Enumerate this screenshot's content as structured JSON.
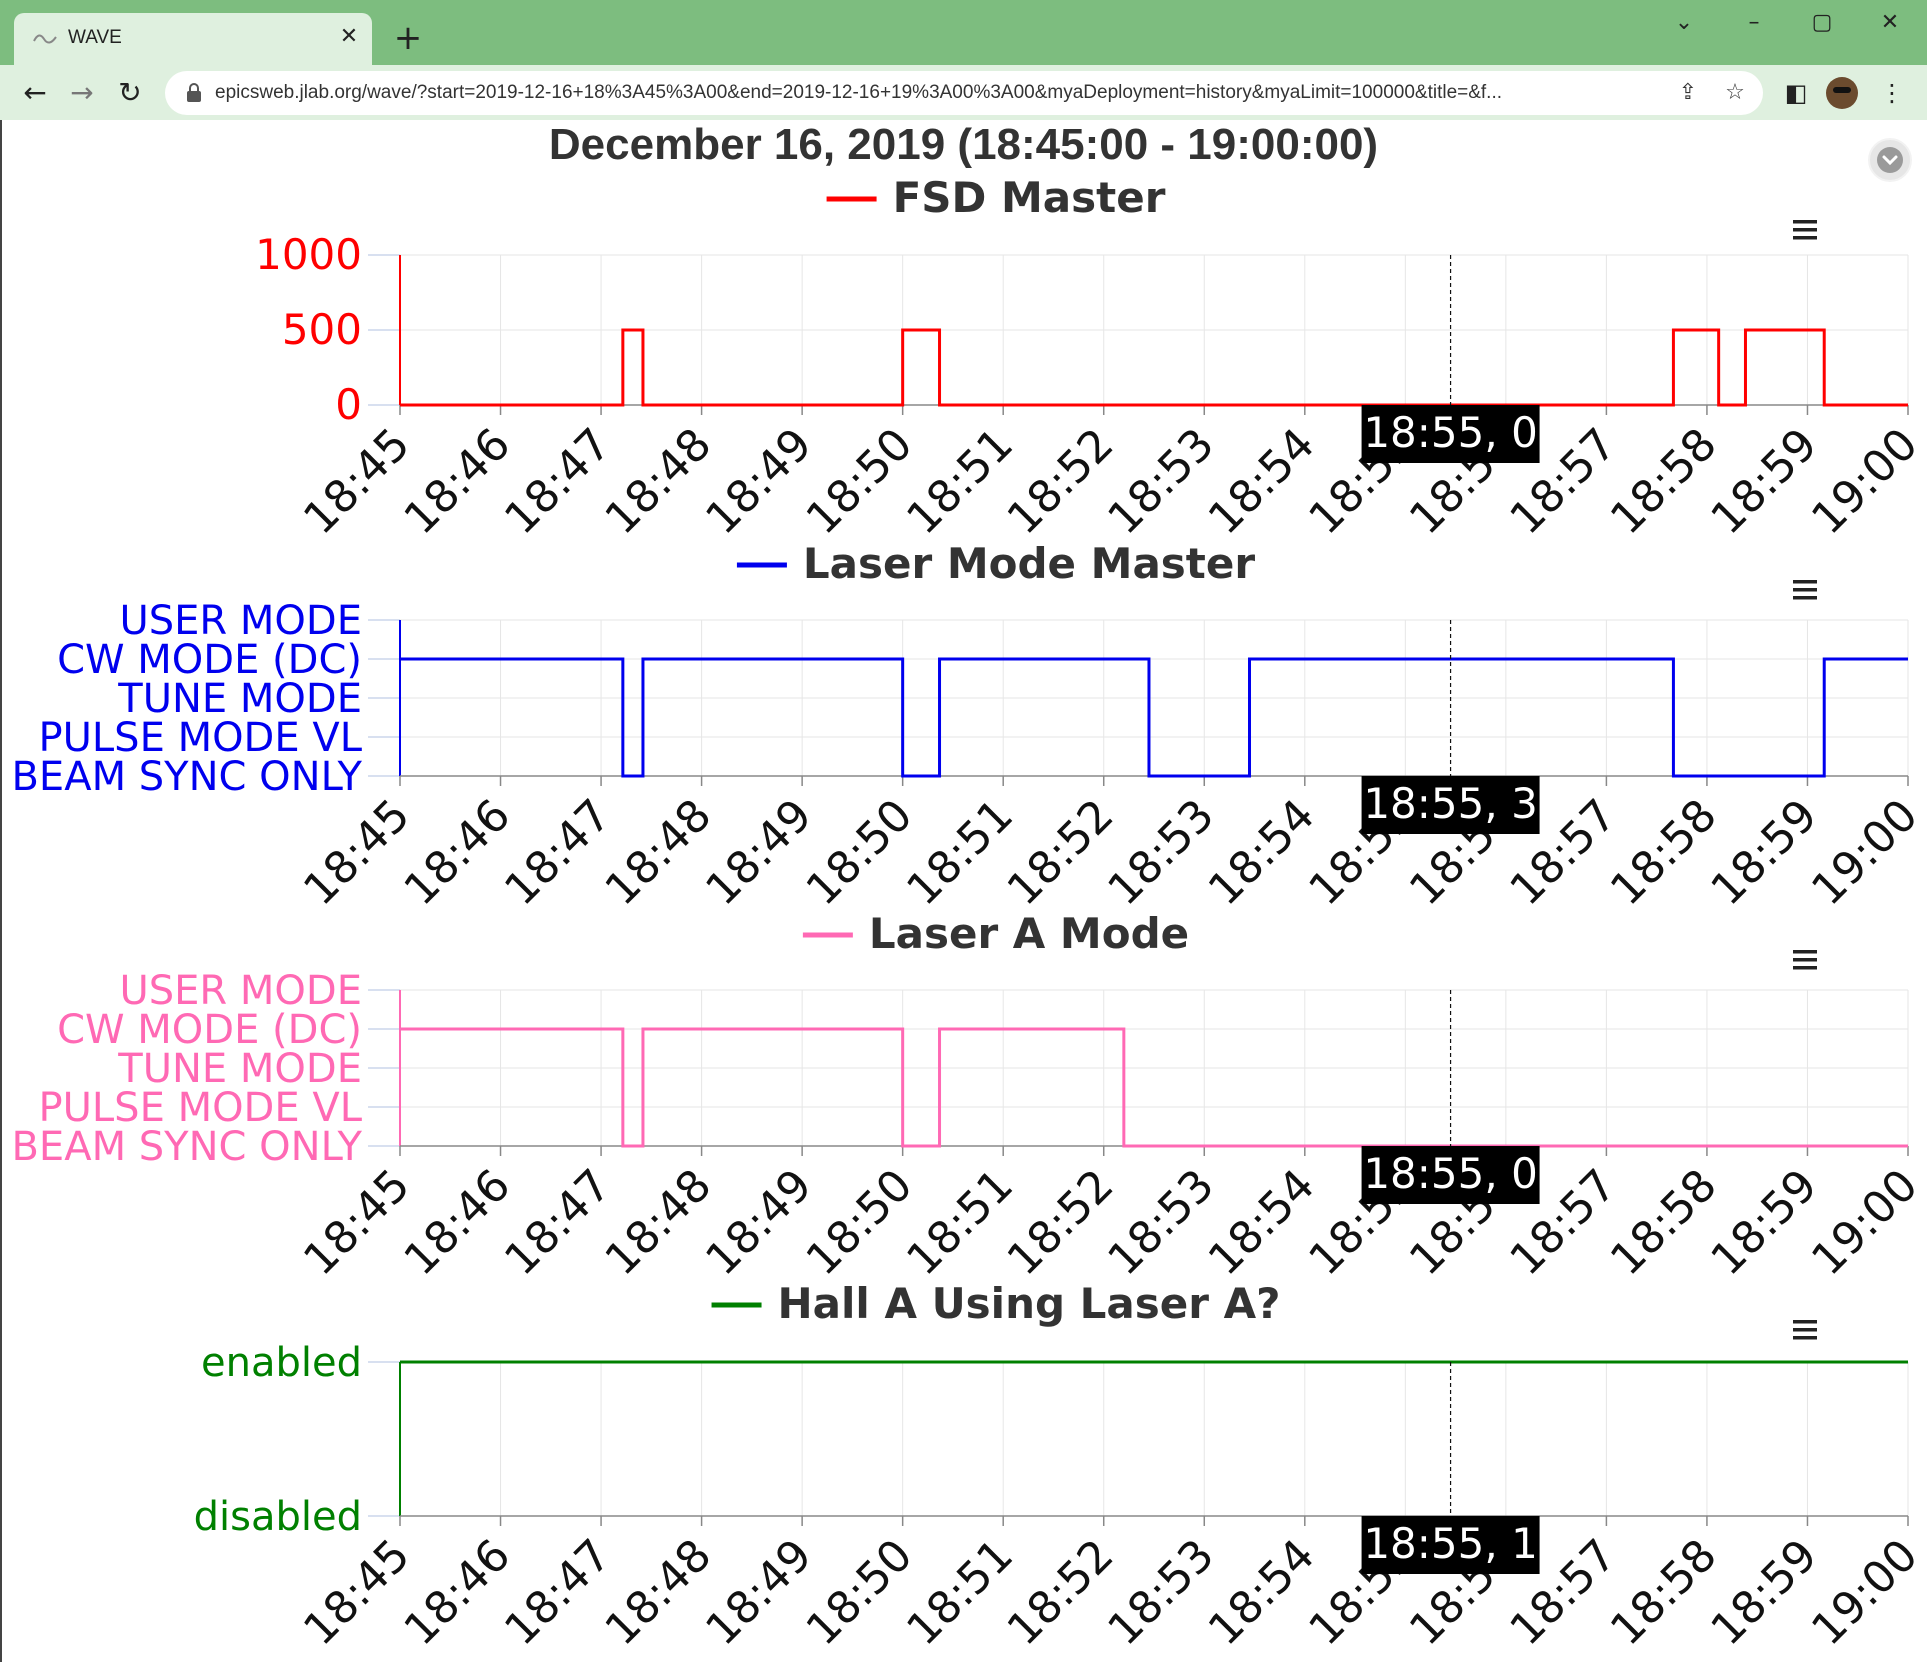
{
  "browser": {
    "tab_title": "WAVE",
    "url": "epicsweb.jlab.org/wave/?start=2019-12-16+18%3A45%3A00&end=2019-12-16+19%3A00%3A00&myaDeployment=history&myaLimit=100000&title=&f...",
    "icons": [
      "wave-favicon",
      "close-icon",
      "plus-icon",
      "chevron-down-icon",
      "minimize-icon",
      "maximize-icon",
      "window-close-icon",
      "back-arrow-icon",
      "forward-arrow-icon",
      "reload-icon",
      "lock-icon",
      "share-icon",
      "star-icon",
      "sidebar-icon",
      "profile-avatar",
      "kebab-menu-icon"
    ]
  },
  "page": {
    "title": "December 16, 2019 (18:45:00 - 19:00:00)",
    "download_icon": "chevron-down-circle-icon",
    "menu_icon": "hamburger-icon"
  },
  "chart_data": [
    {
      "type": "line",
      "step": true,
      "title": "FSD Master",
      "x_ticks": [
        "18:45",
        "18:46",
        "18:47",
        "18:48",
        "18:49",
        "18:50",
        "18:51",
        "18:52",
        "18:53",
        "18:54",
        "18:55",
        "18:56",
        "18:57",
        "18:58",
        "18:59",
        "19:00"
      ],
      "xlim": [
        "18:45",
        "19:00"
      ],
      "ylim": [
        0,
        1000
      ],
      "y_ticks": [
        "0",
        "500",
        "1000"
      ],
      "grid": true,
      "color": "#ff0000",
      "series": [
        {
          "name": "FSD Master",
          "x": [
            "18:45:00",
            "18:47:13",
            "18:47:25",
            "18:50:00",
            "18:50:22",
            "18:57:40",
            "18:58:07",
            "18:58:23",
            "18:59:10",
            "19:00:00"
          ],
          "y": [
            0,
            500,
            0,
            500,
            0,
            500,
            0,
            500,
            0,
            0
          ]
        }
      ],
      "crosshair": {
        "x": "18:55:27",
        "label": "18:55, 0"
      }
    },
    {
      "type": "line",
      "step": true,
      "title": "Laser Mode Master",
      "x_ticks": [
        "18:45",
        "18:46",
        "18:47",
        "18:48",
        "18:49",
        "18:50",
        "18:51",
        "18:52",
        "18:53",
        "18:54",
        "18:55",
        "18:56",
        "18:57",
        "18:58",
        "18:59",
        "19:00"
      ],
      "xlim": [
        "18:45",
        "19:00"
      ],
      "ylim": [
        0,
        4
      ],
      "y_ticks": [
        "BEAM SYNC ONLY",
        "PULSE MODE VL",
        "TUNE MODE",
        "CW MODE (DC)",
        "USER MODE"
      ],
      "grid": true,
      "color": "#0000ee",
      "series": [
        {
          "name": "Laser Mode Master",
          "x": [
            "18:45:00",
            "18:47:13",
            "18:47:25",
            "18:50:00",
            "18:50:22",
            "18:52:27",
            "18:53:27",
            "18:57:40",
            "18:59:10",
            "19:00:00"
          ],
          "y": [
            3,
            0,
            3,
            0,
            3,
            0,
            3,
            0,
            3,
            3
          ]
        }
      ],
      "crosshair": {
        "x": "18:55:27",
        "label": "18:55, 3"
      }
    },
    {
      "type": "line",
      "step": true,
      "title": "Laser A Mode",
      "x_ticks": [
        "18:45",
        "18:46",
        "18:47",
        "18:48",
        "18:49",
        "18:50",
        "18:51",
        "18:52",
        "18:53",
        "18:54",
        "18:55",
        "18:56",
        "18:57",
        "18:58",
        "18:59",
        "19:00"
      ],
      "xlim": [
        "18:45",
        "19:00"
      ],
      "ylim": [
        0,
        4
      ],
      "y_ticks": [
        "BEAM SYNC ONLY",
        "PULSE MODE VL",
        "TUNE MODE",
        "CW MODE (DC)",
        "USER MODE"
      ],
      "grid": true,
      "color": "#ff69b4",
      "series": [
        {
          "name": "Laser A Mode",
          "x": [
            "18:45:00",
            "18:47:13",
            "18:47:25",
            "18:50:00",
            "18:50:22",
            "18:52:12",
            "19:00:00"
          ],
          "y": [
            3,
            0,
            3,
            0,
            3,
            0,
            0
          ]
        }
      ],
      "crosshair": {
        "x": "18:55:27",
        "label": "18:55, 0"
      }
    },
    {
      "type": "line",
      "step": true,
      "title": "Hall A Using Laser A?",
      "x_ticks": [
        "18:45",
        "18:46",
        "18:47",
        "18:48",
        "18:49",
        "18:50",
        "18:51",
        "18:52",
        "18:53",
        "18:54",
        "18:55",
        "18:56",
        "18:57",
        "18:58",
        "18:59",
        "19:00"
      ],
      "xlim": [
        "18:45",
        "19:00"
      ],
      "ylim": [
        0,
        1
      ],
      "y_ticks": [
        "disabled",
        "enabled"
      ],
      "grid": true,
      "color": "#008000",
      "series": [
        {
          "name": "Hall A Using Laser A?",
          "x": [
            "18:45:00",
            "19:00:00"
          ],
          "y": [
            1,
            1
          ]
        }
      ],
      "crosshair": {
        "x": "18:55:27",
        "label": "18:55, 1"
      }
    }
  ]
}
